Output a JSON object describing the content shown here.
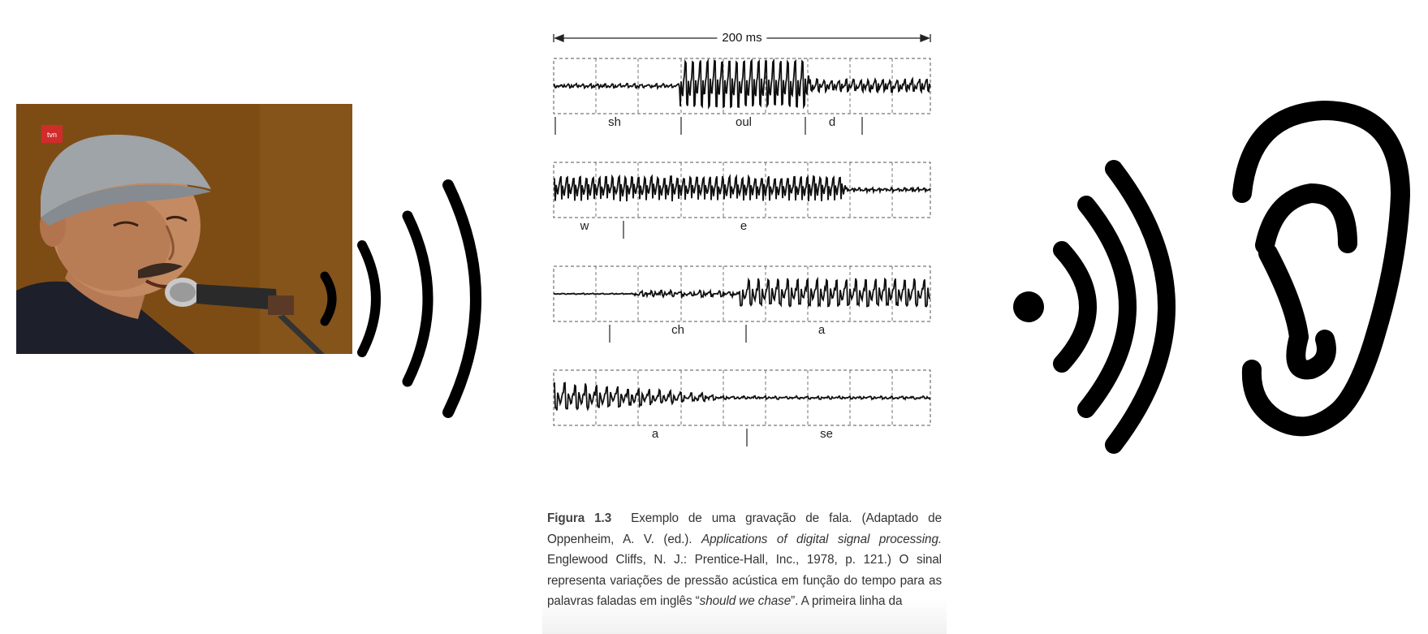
{
  "photo": {
    "logo_text": "tvn"
  },
  "waveform": {
    "duration_label": "200 ms",
    "rows": [
      {
        "labels": [
          "sh",
          "oul",
          "d"
        ]
      },
      {
        "labels": [
          "w",
          "e"
        ]
      },
      {
        "labels": [
          "ch",
          "a"
        ]
      },
      {
        "labels": [
          "a",
          "se"
        ]
      }
    ]
  },
  "caption": {
    "figure_label": "Figura 1.3",
    "part1": "Exemplo de uma gravação de fala. (Adaptado de Oppenheim, A. V. (ed.). ",
    "book_title": "Applications of digital signal processing.",
    "part2": " Englewood Cliffs, N. J.: Prentice-Hall, Inc., 1978, p. 121.) O sinal representa variações de pressão acústica em função do tempo para as palavras faladas em inglês “",
    "phrase": "should we chase",
    "part3": "”. A primeira linha da"
  }
}
